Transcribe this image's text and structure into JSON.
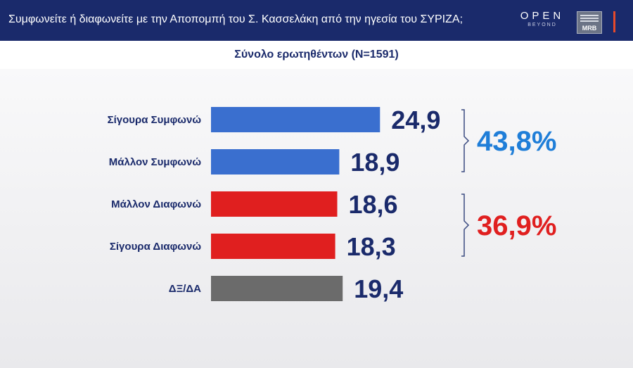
{
  "header": {
    "question": "Συμφωνείτε ή διαφωνείτε με την Αποπομπή του Σ. Κασσελάκη από την ηγεσία του ΣΥΡΙΖΑ;",
    "logo_open": "OPEN",
    "logo_open_sub": "BEYOND",
    "logo_mrb": "MRB"
  },
  "subheader": {
    "sample": "Σύνολο ερωτηθέντων (N=1591)"
  },
  "colors": {
    "header_bg": "#1a2a6b",
    "agree": "#3a6fcf",
    "disagree": "#e01f1f",
    "dk": "#6b6b6b",
    "label": "#1a2a6b",
    "agree_total": "#1f7ed8",
    "disagree_total": "#e01f1f"
  },
  "chart_data": {
    "type": "bar",
    "orientation": "horizontal",
    "title": "",
    "xlabel": "",
    "ylabel": "",
    "categories": [
      "Σίγουρα Συμφωνώ",
      "Μάλλον Συμφωνώ",
      "Μάλλον Διαφωνώ",
      "Σίγουρα Διαφωνώ",
      "ΔΞ/ΔΑ"
    ],
    "values": [
      24.9,
      18.9,
      18.6,
      18.3,
      19.4
    ],
    "value_labels": [
      "24,9",
      "18,9",
      "18,6",
      "18,3",
      "19,4"
    ],
    "bar_colors": [
      "#3a6fcf",
      "#3a6fcf",
      "#e01f1f",
      "#e01f1f",
      "#6b6b6b"
    ],
    "groups": [
      {
        "members": [
          0,
          1
        ],
        "total_label": "43,8%",
        "color": "#1f7ed8"
      },
      {
        "members": [
          2,
          3
        ],
        "total_label": "36,9%",
        "color": "#e01f1f"
      }
    ],
    "grid": false,
    "legend": "none"
  }
}
